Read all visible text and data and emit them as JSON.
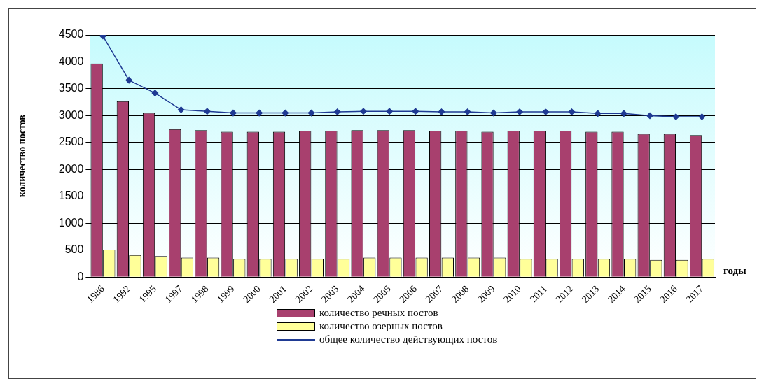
{
  "chart_data": {
    "type": "bar",
    "ylabel": "количество постов",
    "xlabel": "годы",
    "categories": [
      "1986",
      "1992",
      "1995",
      "1997",
      "1998",
      "1999",
      "2000",
      "2001",
      "2002",
      "2003",
      "2004",
      "2005",
      "2006",
      "2007",
      "2008",
      "2009",
      "2010",
      "2011",
      "2012",
      "2013",
      "2014",
      "2015",
      "2016",
      "2017"
    ],
    "series": [
      {
        "name": "количество речных постов",
        "color": "#a8406e",
        "values": [
          3970,
          3270,
          3050,
          2750,
          2730,
          2700,
          2700,
          2700,
          2720,
          2720,
          2730,
          2730,
          2730,
          2720,
          2720,
          2700,
          2720,
          2720,
          2720,
          2700,
          2700,
          2660,
          2660,
          2640
        ]
      },
      {
        "name": "количество озерных постов",
        "color": "#ffff99",
        "values": [
          510,
          410,
          390,
          360,
          360,
          340,
          340,
          340,
          340,
          340,
          360,
          360,
          360,
          360,
          360,
          360,
          340,
          340,
          340,
          340,
          340,
          320,
          320,
          340
        ]
      },
      {
        "name": "общее количество действующих постов",
        "type": "line",
        "color": "#1f3a93",
        "marker": "diamond",
        "values": [
          4480,
          3660,
          3420,
          3110,
          3080,
          3050,
          3050,
          3050,
          3050,
          3070,
          3080,
          3080,
          3080,
          3070,
          3070,
          3050,
          3070,
          3070,
          3070,
          3040,
          3040,
          3000,
          2980,
          2980
        ]
      }
    ],
    "ylim": [
      0,
      4500
    ],
    "yticks": [
      0,
      500,
      1000,
      1500,
      2000,
      2500,
      3000,
      3500,
      4000,
      4500
    ],
    "grid": "y",
    "legend": "bottom"
  }
}
